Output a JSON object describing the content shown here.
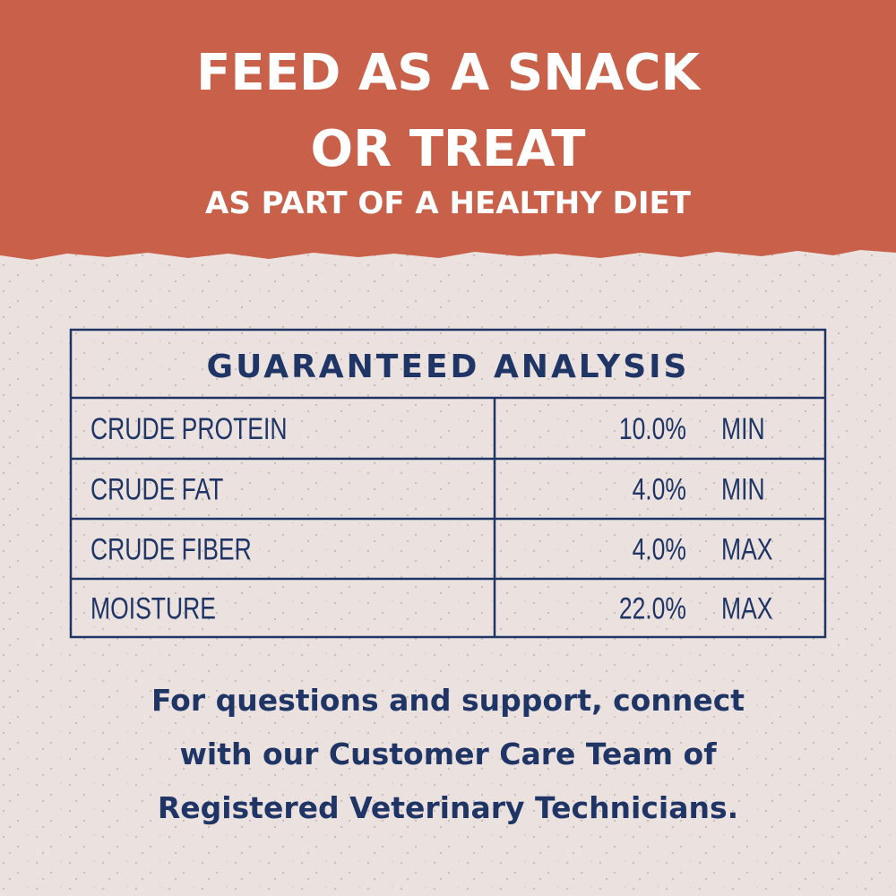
{
  "header": {
    "title_lines": [
      "FEED AS A SNACK",
      "OR TREAT"
    ],
    "subtitle": "AS PART OF A HEALTHY DIET"
  },
  "table": {
    "title": "GUARANTEED ANALYSIS",
    "rows": [
      [
        "CRUDE PROTEIN",
        "10.0%",
        "MIN"
      ],
      [
        "CRUDE FAT",
        "4.0%",
        "MIN"
      ],
      [
        "CRUDE FIBER",
        "4.0%",
        "MAX"
      ],
      [
        "MOISTURE",
        "22.0%",
        "MAX"
      ]
    ]
  },
  "footer": {
    "lines": [
      "For questions and support, connect",
      "with our Customer Care Team of",
      "Registered Veterinary Technicians."
    ]
  }
}
